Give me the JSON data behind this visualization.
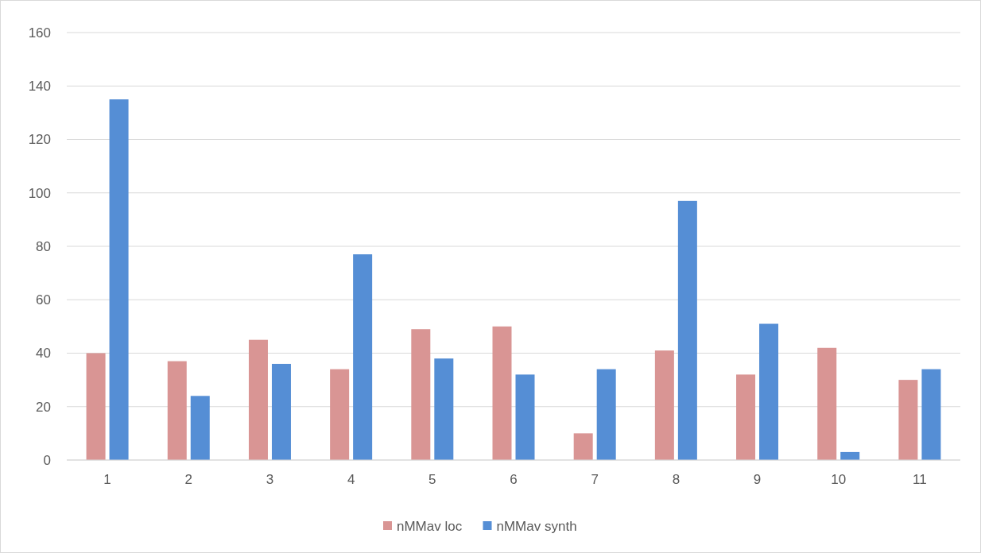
{
  "chart_data": {
    "type": "bar",
    "categories": [
      "1",
      "2",
      "3",
      "4",
      "5",
      "6",
      "7",
      "8",
      "9",
      "10",
      "11"
    ],
    "series": [
      {
        "name": "nMMav loc",
        "color": "#d99594",
        "values": [
          40,
          37,
          45,
          34,
          49,
          50,
          10,
          41,
          32,
          42,
          30
        ]
      },
      {
        "name": "nMMav synth",
        "color": "#558ed5",
        "values": [
          135,
          24,
          36,
          77,
          38,
          32,
          34,
          97,
          51,
          3,
          34
        ]
      }
    ],
    "ylim": [
      0,
      160
    ],
    "yticks": [
      0,
      20,
      40,
      60,
      80,
      100,
      120,
      140,
      160
    ],
    "grid": "y",
    "legend": "bottom"
  }
}
